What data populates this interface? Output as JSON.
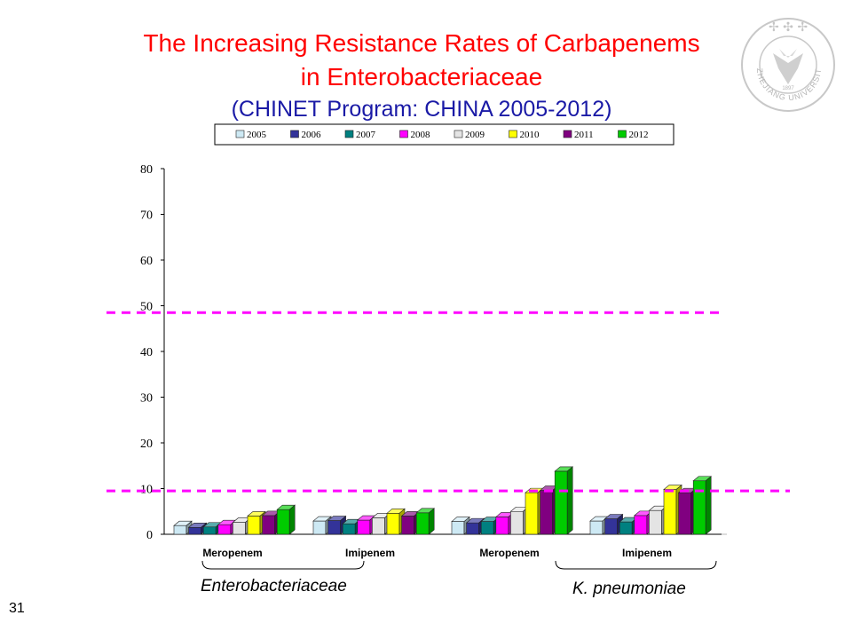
{
  "slide": {
    "title_line1": "The Increasing Resistance Rates of Carbapenems",
    "title_line2": "in Enterobacteriaceae",
    "subtitle": "(CHINET Program: CHINA 2005-2012)",
    "slide_number": "31",
    "group_labels": [
      "Enterobacteriaceae",
      "K. pneumoniae"
    ],
    "logo_text": "ZHEJIANG UNIVERSITY",
    "logo_year": "1897"
  },
  "colors": {
    "title": "#ff0000",
    "subtitle": "#1a1aa6",
    "reference_line": "#ff00ff"
  },
  "chart_data": {
    "type": "bar",
    "title": "",
    "xlabel": "",
    "ylabel": "",
    "categories": [
      "Meropenem",
      "Imipenem",
      "Meropenem",
      "Imipenem"
    ],
    "ylim": [
      0,
      80
    ],
    "yticks": [
      0,
      10,
      20,
      30,
      40,
      50,
      60,
      70,
      80
    ],
    "legend_position": "top",
    "grid": false,
    "series": [
      {
        "name": "2005",
        "color": "#cde9f4",
        "values": [
          1.9,
          2.9,
          2.8,
          2.9
        ]
      },
      {
        "name": "2006",
        "color": "#333399",
        "values": [
          1.5,
          3.0,
          2.5,
          3.4
        ]
      },
      {
        "name": "2007",
        "color": "#008080",
        "values": [
          1.6,
          2.3,
          2.8,
          2.7
        ]
      },
      {
        "name": "2008",
        "color": "#ff00ff",
        "values": [
          2.1,
          3.1,
          3.8,
          4.1
        ]
      },
      {
        "name": "2009",
        "color": "#e4e4e4",
        "values": [
          2.6,
          3.6,
          5.0,
          5.2
        ]
      },
      {
        "name": "2010",
        "color": "#ffff00",
        "values": [
          4.0,
          4.6,
          9.1,
          9.8
        ]
      },
      {
        "name": "2011",
        "color": "#800080",
        "values": [
          4.1,
          4.0,
          9.6,
          9.1
        ]
      },
      {
        "name": "2012",
        "color": "#00cc00",
        "values": [
          5.4,
          4.7,
          13.8,
          11.7
        ]
      }
    ],
    "reference_lines": [
      {
        "value": 48.5,
        "color": "#ff00ff",
        "style": "dashed"
      },
      {
        "value": 9.5,
        "color": "#ff00ff",
        "style": "dashed"
      }
    ]
  }
}
